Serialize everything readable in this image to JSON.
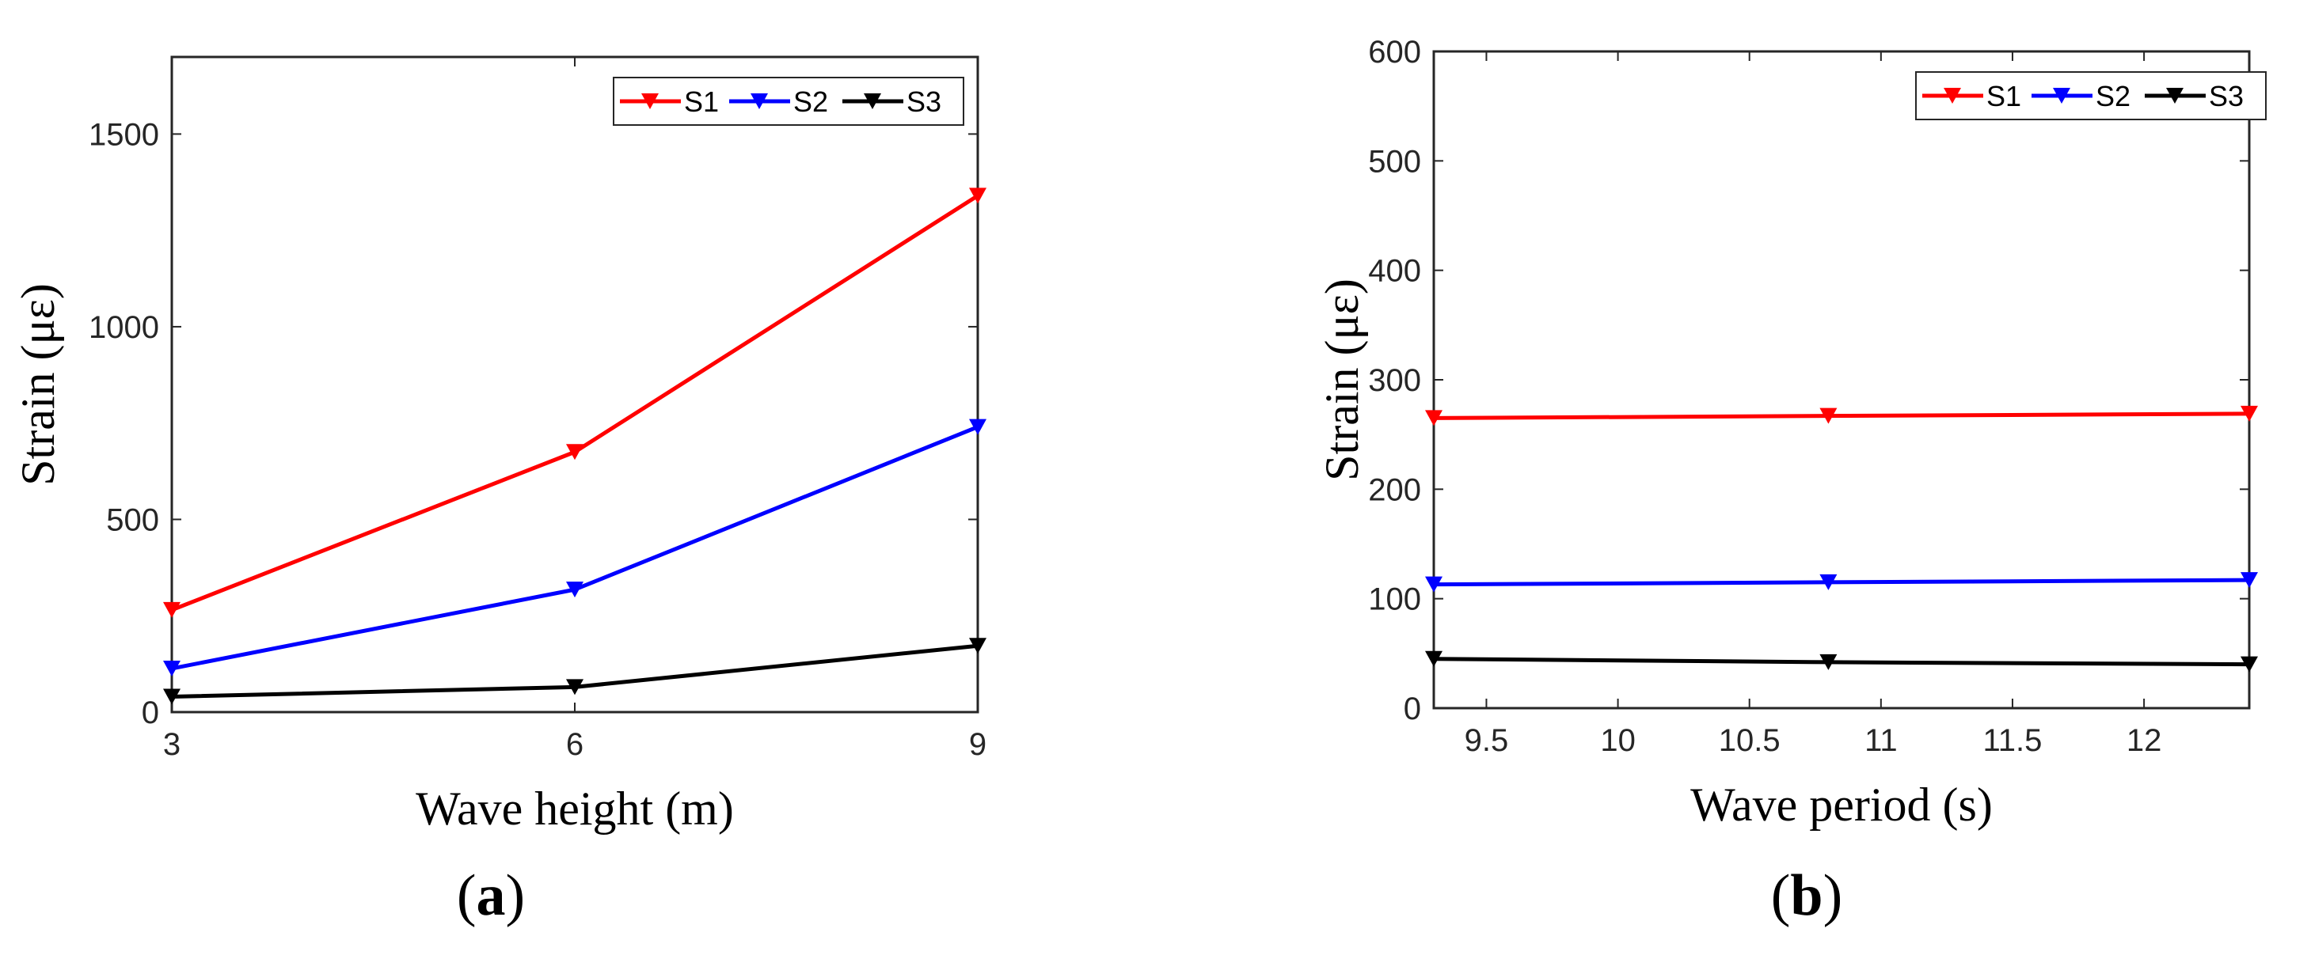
{
  "chart_data": [
    {
      "type": "line",
      "panel_label": "a",
      "xlabel": "Wave height (m)",
      "ylabel": "Strain (με)",
      "x": [
        3,
        6,
        9
      ],
      "xlim": [
        3,
        9
      ],
      "ylim": [
        0,
        1700
      ],
      "xticks": [
        3,
        6,
        9
      ],
      "yticks": [
        0,
        500,
        1000,
        1500
      ],
      "grid": false,
      "legend_position": "top-right",
      "series": [
        {
          "name": "S1",
          "color": "#ff0000",
          "values": [
            265,
            675,
            1340
          ]
        },
        {
          "name": "S2",
          "color": "#0000ff",
          "values": [
            113,
            318,
            740
          ]
        },
        {
          "name": "S3",
          "color": "#000000",
          "values": [
            40,
            65,
            172
          ]
        }
      ]
    },
    {
      "type": "line",
      "panel_label": "b",
      "xlabel": "Wave period (s)",
      "ylabel": "Strain (με)",
      "x": [
        9.3,
        10.8,
        12.4
      ],
      "xlim": [
        9.3,
        12.4
      ],
      "ylim": [
        0,
        600
      ],
      "xticks": [
        9.5,
        10,
        10.5,
        11,
        11.5,
        12
      ],
      "yticks": [
        0,
        100,
        200,
        300,
        400,
        500,
        600
      ],
      "grid": false,
      "legend_position": "top-right",
      "series": [
        {
          "name": "S1",
          "color": "#ff0000",
          "values": [
            265,
            267,
            269
          ]
        },
        {
          "name": "S2",
          "color": "#0000ff",
          "values": [
            113,
            115,
            117
          ]
        },
        {
          "name": "S3",
          "color": "#000000",
          "values": [
            45,
            42,
            40
          ]
        }
      ]
    }
  ]
}
